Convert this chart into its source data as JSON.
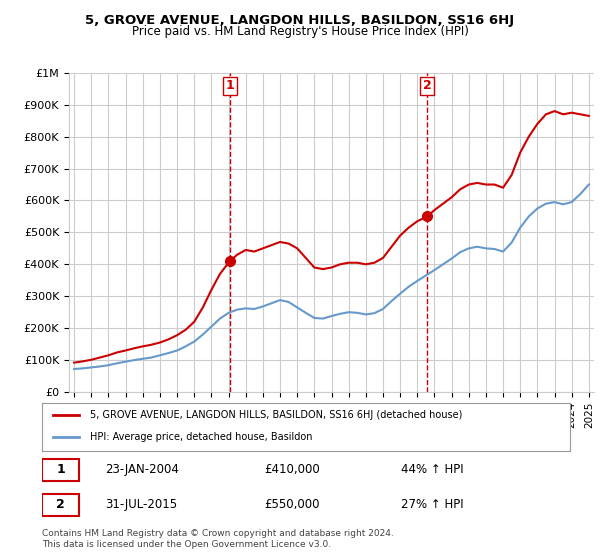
{
  "title": "5, GROVE AVENUE, LANGDON HILLS, BASILDON, SS16 6HJ",
  "subtitle": "Price paid vs. HM Land Registry's House Price Index (HPI)",
  "legend_line1": "5, GROVE AVENUE, LANGDON HILLS, BASILDON, SS16 6HJ (detached house)",
  "legend_line2": "HPI: Average price, detached house, Basildon",
  "annotation1_label": "1",
  "annotation1_date": "23-JAN-2004",
  "annotation1_price": "£410,000",
  "annotation1_hpi": "44% ↑ HPI",
  "annotation2_label": "2",
  "annotation2_date": "31-JUL-2015",
  "annotation2_price": "£550,000",
  "annotation2_hpi": "27% ↑ HPI",
  "footer": "Contains HM Land Registry data © Crown copyright and database right 2024.\nThis data is licensed under the Open Government Licence v3.0.",
  "red_color": "#cc0000",
  "blue_color": "#6699cc",
  "vline_color": "#cc0000",
  "grid_color": "#cccccc",
  "background_color": "#ffffff",
  "ylim": [
    0,
    1000000
  ],
  "yticks": [
    0,
    100000,
    200000,
    300000,
    400000,
    500000,
    600000,
    700000,
    800000,
    900000,
    1000000
  ],
  "ytick_labels": [
    "£0",
    "£100K",
    "£200K",
    "£300K",
    "£400K",
    "£500K",
    "£600K",
    "£700K",
    "£800K",
    "£900K",
    "£1M"
  ],
  "x_start_year": 1995,
  "x_end_year": 2025,
  "sale1_year": 2004.07,
  "sale1_price": 410000,
  "sale2_year": 2015.58,
  "sale2_price": 550000,
  "red_x": [
    1995.0,
    1995.5,
    1996.0,
    1996.5,
    1997.0,
    1997.5,
    1998.0,
    1998.5,
    1999.0,
    1999.5,
    2000.0,
    2000.5,
    2001.0,
    2001.5,
    2002.0,
    2002.5,
    2003.0,
    2003.5,
    2004.07,
    2004.5,
    2005.0,
    2005.5,
    2006.0,
    2006.5,
    2007.0,
    2007.5,
    2008.0,
    2008.5,
    2009.0,
    2009.5,
    2010.0,
    2010.5,
    2011.0,
    2011.5,
    2012.0,
    2012.5,
    2013.0,
    2013.5,
    2014.0,
    2014.5,
    2015.0,
    2015.58,
    2016.0,
    2016.5,
    2017.0,
    2017.5,
    2018.0,
    2018.5,
    2019.0,
    2019.5,
    2020.0,
    2020.5,
    2021.0,
    2021.5,
    2022.0,
    2022.5,
    2023.0,
    2023.5,
    2024.0,
    2024.5,
    2025.0
  ],
  "red_y": [
    92000,
    96000,
    101000,
    108000,
    115000,
    124000,
    130000,
    137000,
    143000,
    148000,
    155000,
    165000,
    178000,
    195000,
    220000,
    265000,
    320000,
    370000,
    410000,
    430000,
    445000,
    440000,
    450000,
    460000,
    470000,
    465000,
    450000,
    420000,
    390000,
    385000,
    390000,
    400000,
    405000,
    405000,
    400000,
    405000,
    420000,
    455000,
    490000,
    515000,
    535000,
    550000,
    570000,
    590000,
    610000,
    635000,
    650000,
    655000,
    650000,
    650000,
    640000,
    680000,
    750000,
    800000,
    840000,
    870000,
    880000,
    870000,
    875000,
    870000,
    865000
  ],
  "blue_x": [
    1995.0,
    1995.5,
    1996.0,
    1996.5,
    1997.0,
    1997.5,
    1998.0,
    1998.5,
    1999.0,
    1999.5,
    2000.0,
    2000.5,
    2001.0,
    2001.5,
    2002.0,
    2002.5,
    2003.0,
    2003.5,
    2004.0,
    2004.5,
    2005.0,
    2005.5,
    2006.0,
    2006.5,
    2007.0,
    2007.5,
    2008.0,
    2008.5,
    2009.0,
    2009.5,
    2010.0,
    2010.5,
    2011.0,
    2011.5,
    2012.0,
    2012.5,
    2013.0,
    2013.5,
    2014.0,
    2014.5,
    2015.0,
    2015.5,
    2016.0,
    2016.5,
    2017.0,
    2017.5,
    2018.0,
    2018.5,
    2019.0,
    2019.5,
    2020.0,
    2020.5,
    2021.0,
    2021.5,
    2022.0,
    2022.5,
    2023.0,
    2023.5,
    2024.0,
    2024.5,
    2025.0
  ],
  "blue_y": [
    72000,
    74000,
    77000,
    80000,
    84000,
    90000,
    95000,
    100000,
    104000,
    108000,
    115000,
    122000,
    130000,
    143000,
    158000,
    180000,
    205000,
    230000,
    248000,
    258000,
    262000,
    260000,
    268000,
    278000,
    288000,
    282000,
    265000,
    248000,
    232000,
    230000,
    238000,
    245000,
    250000,
    248000,
    243000,
    247000,
    260000,
    285000,
    308000,
    330000,
    348000,
    365000,
    382000,
    400000,
    418000,
    438000,
    450000,
    455000,
    450000,
    448000,
    440000,
    468000,
    515000,
    550000,
    575000,
    590000,
    595000,
    588000,
    595000,
    620000,
    650000
  ]
}
